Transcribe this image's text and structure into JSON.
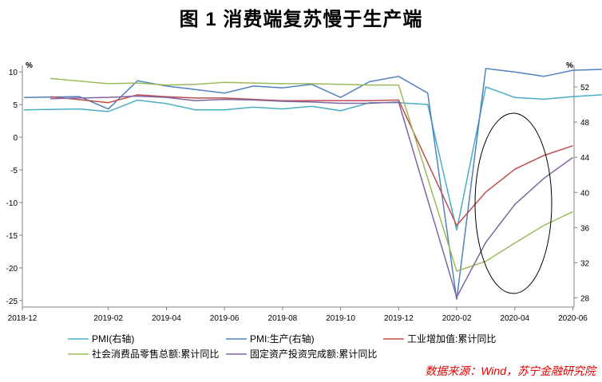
{
  "title": "图 1    消费端复苏慢于生产端",
  "source": "数据来源：Wind，苏宁金融研究院",
  "chart_data": {
    "type": "line",
    "left_axis": {
      "unit": "%",
      "ylim": [
        -26,
        11
      ],
      "ticks": [
        10,
        5,
        0,
        -5,
        -10,
        -15,
        -20,
        -25
      ]
    },
    "right_axis": {
      "unit": "%",
      "ylim": [
        26.96,
        54.45
      ],
      "ticks": [
        52,
        48,
        44,
        40,
        36,
        32,
        28
      ]
    },
    "x_labels": [
      "2018-12",
      "2019-02",
      "2019-04",
      "2019-06",
      "2019-08",
      "2019-10",
      "2019-12",
      "2020-02",
      "2020-04",
      "2020-06"
    ],
    "x": [
      "2018-12",
      "2019-01",
      "2019-02",
      "2019-03",
      "2019-04",
      "2019-05",
      "2019-06",
      "2019-07",
      "2019-08",
      "2019-09",
      "2019-10",
      "2019-11",
      "2019-12",
      "2020-01",
      "2020-02",
      "2020-03",
      "2020-04",
      "2020-05",
      "2020-06",
      "2020-07"
    ],
    "series": [
      {
        "name": "PMI(右轴)",
        "axis": "right",
        "color": "#4bacc6",
        "values": [
          49.4,
          49.5,
          49.2,
          50.5,
          50.1,
          49.4,
          49.4,
          49.7,
          49.5,
          49.8,
          49.3,
          50.2,
          50.2,
          50.0,
          35.7,
          52.0,
          50.8,
          50.6,
          50.9,
          51.1
        ]
      },
      {
        "name": "PMI:生产(右轴)",
        "axis": "right",
        "color": "#4f81bd",
        "values": [
          50.8,
          50.9,
          49.5,
          52.7,
          52.1,
          51.7,
          51.3,
          52.1,
          51.9,
          52.3,
          50.8,
          52.6,
          53.2,
          51.3,
          27.8,
          54.1,
          53.7,
          53.2,
          53.9,
          54.0
        ]
      },
      {
        "name": "工业增加值:累计同比",
        "axis": "left",
        "color": "#c0504d",
        "values": [
          6.2,
          null,
          5.3,
          6.5,
          6.2,
          6.0,
          6.0,
          5.8,
          5.6,
          5.6,
          5.6,
          5.6,
          5.7,
          null,
          -13.5,
          -8.4,
          -4.9,
          -2.8,
          -1.3,
          null
        ]
      },
      {
        "name": "社会消费品零售总额:累计同比",
        "axis": "left",
        "color": "#9bbb59",
        "values": [
          9.0,
          null,
          8.2,
          8.3,
          8.0,
          8.1,
          8.4,
          8.3,
          8.2,
          8.2,
          8.1,
          8.0,
          8.0,
          null,
          -20.5,
          -19.0,
          -16.2,
          -13.5,
          -11.4,
          null
        ]
      },
      {
        "name": "固定资产投资完成额:累计同比",
        "axis": "left",
        "color": "#8064a2",
        "values": [
          5.9,
          null,
          6.1,
          6.3,
          6.1,
          5.6,
          5.8,
          5.7,
          5.5,
          5.4,
          5.2,
          5.2,
          5.4,
          null,
          -24.5,
          -16.1,
          -10.3,
          -6.3,
          -3.1,
          null
        ]
      }
    ],
    "legend_position": "bottom",
    "annotation": "ellipse around 2020-04 to 2020-06"
  }
}
